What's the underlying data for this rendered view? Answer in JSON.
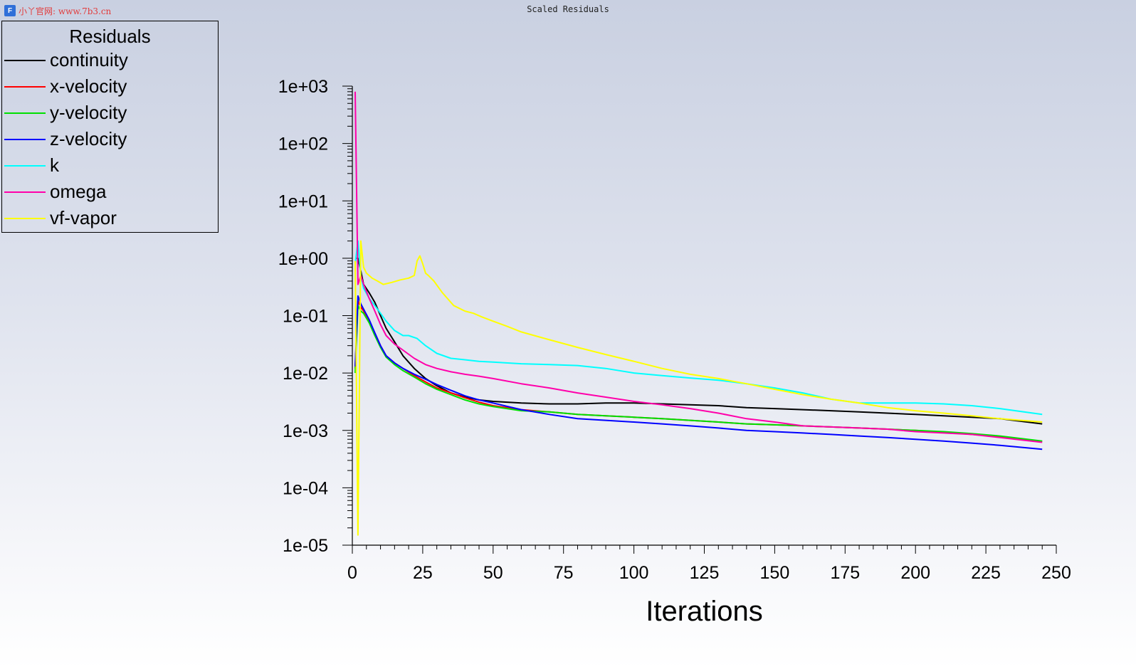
{
  "watermark": {
    "logo": "F",
    "text": "小丫官网: www.7b3.cn"
  },
  "title": "Scaled Residuals",
  "legend": {
    "title": "Residuals"
  },
  "chart_data": {
    "type": "line",
    "title": "Scaled Residuals",
    "xlabel": "Iterations",
    "ylabel": "",
    "xlim": [
      0,
      250
    ],
    "ylim": [
      1e-05,
      1000
    ],
    "yscale": "log",
    "xticks": [
      0,
      25,
      50,
      75,
      100,
      125,
      150,
      175,
      200,
      225,
      250
    ],
    "yticks": [
      1e-05,
      0.0001,
      0.001,
      0.01,
      0.1,
      1,
      10,
      100,
      1000
    ],
    "ytick_labels": [
      "1e-05",
      "1e-04",
      "1e-03",
      "1e-02",
      "1e-01",
      "1e+00",
      "1e+01",
      "1e+02",
      "1e+03"
    ],
    "legend_position": "top-left",
    "grid": false,
    "series": [
      {
        "name": "continuity",
        "color": "#000000",
        "x": [
          1,
          2,
          3,
          4,
          6,
          8,
          10,
          12,
          15,
          18,
          22,
          26,
          30,
          35,
          40,
          45,
          50,
          60,
          70,
          80,
          90,
          100,
          110,
          120,
          130,
          140,
          150,
          160,
          170,
          180,
          190,
          200,
          210,
          220,
          230,
          245
        ],
        "y": [
          1,
          1,
          0.6,
          0.35,
          0.25,
          0.17,
          0.1,
          0.06,
          0.035,
          0.02,
          0.012,
          0.008,
          0.006,
          0.0045,
          0.0038,
          0.0034,
          0.0032,
          0.003,
          0.0029,
          0.0029,
          0.003,
          0.003,
          0.0029,
          0.0028,
          0.0027,
          0.0025,
          0.0024,
          0.0023,
          0.0022,
          0.0021,
          0.002,
          0.0019,
          0.0018,
          0.0017,
          0.0016,
          0.0013
        ]
      },
      {
        "name": "x-velocity",
        "color": "#ff0000",
        "x": [
          1,
          2,
          3,
          4,
          6,
          8,
          10,
          12,
          15,
          18,
          22,
          26,
          30,
          35,
          40,
          45,
          50,
          60,
          70,
          80,
          90,
          100,
          110,
          120,
          130,
          140,
          150,
          160,
          170,
          180,
          190,
          200,
          210,
          220,
          230,
          245
        ],
        "y": [
          0.012,
          0.18,
          0.14,
          0.12,
          0.08,
          0.05,
          0.03,
          0.02,
          0.015,
          0.012,
          0.009,
          0.007,
          0.0055,
          0.0045,
          0.0037,
          0.0031,
          0.0027,
          0.0023,
          0.0021,
          0.0019,
          0.0018,
          0.0017,
          0.0016,
          0.0015,
          0.0014,
          0.0013,
          0.00125,
          0.0012,
          0.00115,
          0.0011,
          0.00105,
          0.001,
          0.00093,
          0.00085,
          0.00078,
          0.00064
        ]
      },
      {
        "name": "y-velocity",
        "color": "#00e000",
        "x": [
          1,
          2,
          3,
          4,
          6,
          8,
          10,
          12,
          15,
          18,
          22,
          26,
          30,
          35,
          40,
          45,
          50,
          60,
          70,
          80,
          90,
          100,
          110,
          120,
          130,
          140,
          150,
          160,
          170,
          180,
          190,
          200,
          210,
          220,
          230,
          245
        ],
        "y": [
          0.01,
          0.15,
          0.12,
          0.11,
          0.075,
          0.045,
          0.028,
          0.019,
          0.014,
          0.011,
          0.0085,
          0.0065,
          0.0052,
          0.0042,
          0.0034,
          0.0029,
          0.0026,
          0.0022,
          0.0021,
          0.0019,
          0.0018,
          0.0017,
          0.0016,
          0.0015,
          0.0014,
          0.0013,
          0.00125,
          0.0012,
          0.00115,
          0.0011,
          0.00105,
          0.001,
          0.00095,
          0.00088,
          0.0008,
          0.00065
        ]
      },
      {
        "name": "z-velocity",
        "color": "#0000ff",
        "x": [
          1,
          2,
          3,
          4,
          6,
          8,
          10,
          12,
          15,
          18,
          22,
          26,
          30,
          35,
          40,
          45,
          50,
          60,
          70,
          80,
          90,
          100,
          110,
          120,
          130,
          140,
          150,
          160,
          170,
          180,
          190,
          200,
          210,
          220,
          230,
          245
        ],
        "y": [
          0.013,
          0.22,
          0.16,
          0.13,
          0.085,
          0.05,
          0.03,
          0.02,
          0.015,
          0.012,
          0.0095,
          0.0078,
          0.0063,
          0.005,
          0.004,
          0.0034,
          0.003,
          0.0023,
          0.0019,
          0.0016,
          0.0015,
          0.0014,
          0.0013,
          0.0012,
          0.0011,
          0.001,
          0.00095,
          0.0009,
          0.00085,
          0.0008,
          0.00075,
          0.0007,
          0.00065,
          0.0006,
          0.00055,
          0.00047
        ]
      },
      {
        "name": "k",
        "color": "#00ffff",
        "x": [
          1,
          2,
          3,
          4,
          6,
          8,
          10,
          12,
          15,
          18,
          20,
          23,
          26,
          30,
          35,
          40,
          45,
          50,
          60,
          70,
          80,
          90,
          100,
          110,
          120,
          130,
          140,
          150,
          160,
          170,
          180,
          190,
          200,
          210,
          220,
          230,
          245
        ],
        "y": [
          0.8,
          2,
          0.5,
          0.3,
          0.2,
          0.15,
          0.11,
          0.08,
          0.055,
          0.045,
          0.045,
          0.04,
          0.03,
          0.022,
          0.018,
          0.017,
          0.016,
          0.0155,
          0.0145,
          0.014,
          0.0135,
          0.012,
          0.01,
          0.009,
          0.0082,
          0.0075,
          0.0065,
          0.0055,
          0.0045,
          0.0035,
          0.003,
          0.003,
          0.003,
          0.0029,
          0.0027,
          0.0024,
          0.0019
        ]
      },
      {
        "name": "omega",
        "color": "#ff00aa",
        "x": [
          1,
          2,
          3,
          4,
          6,
          8,
          10,
          12,
          15,
          18,
          22,
          26,
          30,
          35,
          40,
          45,
          50,
          60,
          70,
          80,
          90,
          100,
          110,
          120,
          130,
          140,
          150,
          160,
          170,
          180,
          190,
          200,
          210,
          220,
          230,
          245
        ],
        "y": [
          800,
          0.35,
          0.5,
          0.35,
          0.2,
          0.12,
          0.07,
          0.045,
          0.032,
          0.025,
          0.018,
          0.014,
          0.012,
          0.0105,
          0.0095,
          0.0088,
          0.008,
          0.0065,
          0.0055,
          0.0045,
          0.0038,
          0.0032,
          0.0028,
          0.0024,
          0.002,
          0.0016,
          0.0014,
          0.0012,
          0.00115,
          0.0011,
          0.00105,
          0.00095,
          0.0009,
          0.00085,
          0.00075,
          0.00062
        ]
      },
      {
        "name": "vf-vapor",
        "color": "#ffff00",
        "x": [
          1,
          2,
          3,
          4,
          5,
          7,
          9,
          11,
          14,
          17,
          20,
          22,
          23,
          24,
          25,
          26,
          27,
          29,
          32,
          36,
          40,
          43,
          46,
          50,
          55,
          60,
          70,
          80,
          90,
          100,
          110,
          120,
          130,
          140,
          150,
          160,
          170,
          180,
          190,
          200,
          210,
          220,
          230,
          245
        ],
        "y": [
          0.9,
          1.5e-05,
          2,
          0.7,
          0.55,
          0.45,
          0.4,
          0.35,
          0.38,
          0.42,
          0.45,
          0.5,
          0.9,
          1.1,
          0.8,
          0.55,
          0.5,
          0.4,
          0.25,
          0.15,
          0.12,
          0.11,
          0.095,
          0.08,
          0.065,
          0.052,
          0.038,
          0.028,
          0.021,
          0.016,
          0.012,
          0.0095,
          0.008,
          0.0065,
          0.0052,
          0.0042,
          0.0035,
          0.003,
          0.0025,
          0.0022,
          0.002,
          0.0018,
          0.0016,
          0.0014
        ]
      }
    ]
  }
}
